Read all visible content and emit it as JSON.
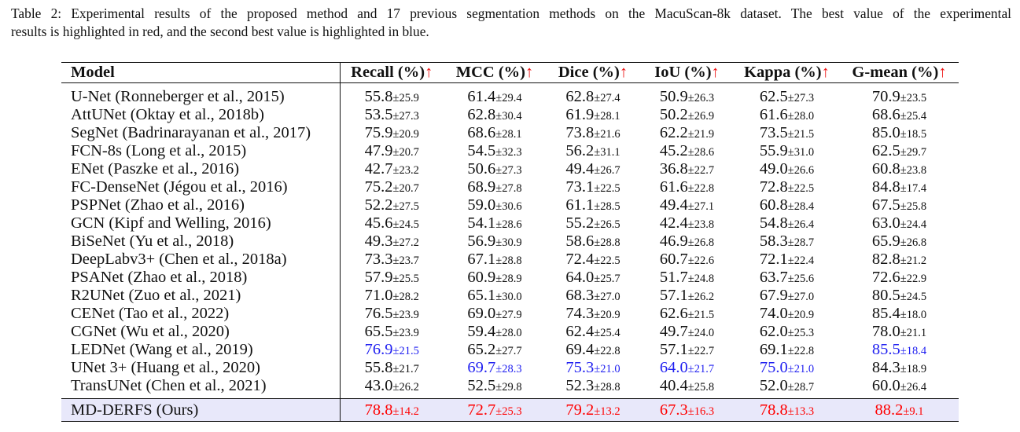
{
  "caption": {
    "line1": "Table 2: Experimental results of the proposed method and 17 previous segmentation methods on the MacuScan-8k dataset.  The best value of the experimental",
    "line2": "results is highlighted in red, and the second best value is highlighted in blue."
  },
  "table": {
    "headers": [
      "Model",
      "Recall (%)",
      "MCC (%)",
      "Dice (%)",
      "IoU (%)",
      "Kappa (%)",
      "G-mean (%)"
    ],
    "arrow": "↑",
    "colors": {
      "best": "#ff0000",
      "second": "#1f1ff0",
      "ours_row_bg": "#e8e8fa"
    },
    "rows": [
      {
        "model": "U-Net (Ronneberger et al., 2015)",
        "cells": [
          {
            "v": "55.8",
            "sd": "±25.9"
          },
          {
            "v": "61.4",
            "sd": "±29.4"
          },
          {
            "v": "62.8",
            "sd": "±27.4"
          },
          {
            "v": "50.9",
            "sd": "±26.3"
          },
          {
            "v": "62.5",
            "sd": "±27.3"
          },
          {
            "v": "70.9",
            "sd": "±23.5"
          }
        ]
      },
      {
        "model": "AttUNet (Oktay et al., 2018b)",
        "cells": [
          {
            "v": "53.5",
            "sd": "±27.3"
          },
          {
            "v": "62.8",
            "sd": "±30.4"
          },
          {
            "v": "61.9",
            "sd": "±28.1"
          },
          {
            "v": "50.2",
            "sd": "±26.9"
          },
          {
            "v": "61.6",
            "sd": "±28.0"
          },
          {
            "v": "68.6",
            "sd": "±25.4"
          }
        ]
      },
      {
        "model": "SegNet (Badrinarayanan et al., 2017)",
        "cells": [
          {
            "v": "75.9",
            "sd": "±20.9"
          },
          {
            "v": "68.6",
            "sd": "±28.1"
          },
          {
            "v": "73.8",
            "sd": "±21.6"
          },
          {
            "v": "62.2",
            "sd": "±21.9"
          },
          {
            "v": "73.5",
            "sd": "±21.5"
          },
          {
            "v": "85.0",
            "sd": "±18.5"
          }
        ]
      },
      {
        "model": "FCN-8s (Long et al., 2015)",
        "cells": [
          {
            "v": "47.9",
            "sd": "±20.7"
          },
          {
            "v": "54.5",
            "sd": "±32.3"
          },
          {
            "v": "56.2",
            "sd": "±31.1"
          },
          {
            "v": "45.2",
            "sd": "±28.6"
          },
          {
            "v": "55.9",
            "sd": "±31.0"
          },
          {
            "v": "62.5",
            "sd": "±29.7"
          }
        ]
      },
      {
        "model": "ENet (Paszke et al., 2016)",
        "cells": [
          {
            "v": "42.7",
            "sd": "±23.2"
          },
          {
            "v": "50.6",
            "sd": "±27.3"
          },
          {
            "v": "49.4",
            "sd": "±26.7"
          },
          {
            "v": "36.8",
            "sd": "±22.7"
          },
          {
            "v": "49.0",
            "sd": "±26.6"
          },
          {
            "v": "60.8",
            "sd": "±23.8"
          }
        ]
      },
      {
        "model": "FC-DenseNet (Jégou et al., 2016)",
        "cells": [
          {
            "v": "75.2",
            "sd": "±20.7"
          },
          {
            "v": "68.9",
            "sd": "±27.8"
          },
          {
            "v": "73.1",
            "sd": "±22.5"
          },
          {
            "v": "61.6",
            "sd": "±22.8"
          },
          {
            "v": "72.8",
            "sd": "±22.5"
          },
          {
            "v": "84.8",
            "sd": "±17.4"
          }
        ]
      },
      {
        "model": "PSPNet (Zhao et al., 2016)",
        "cells": [
          {
            "v": "52.2",
            "sd": "±27.5"
          },
          {
            "v": "59.0",
            "sd": "±30.6"
          },
          {
            "v": "61.1",
            "sd": "±28.5"
          },
          {
            "v": "49.4",
            "sd": "±27.1"
          },
          {
            "v": "60.8",
            "sd": "±28.4"
          },
          {
            "v": "67.5",
            "sd": "±25.8"
          }
        ]
      },
      {
        "model": "GCN (Kipf and Welling, 2016)",
        "cells": [
          {
            "v": "45.6",
            "sd": "±24.5"
          },
          {
            "v": "54.1",
            "sd": "±28.6"
          },
          {
            "v": "55.2",
            "sd": "±26.5"
          },
          {
            "v": "42.4",
            "sd": "±23.8"
          },
          {
            "v": "54.8",
            "sd": "±26.4"
          },
          {
            "v": "63.0",
            "sd": "±24.4"
          }
        ]
      },
      {
        "model": "BiSeNet (Yu et al., 2018)",
        "cells": [
          {
            "v": "49.3",
            "sd": "±27.2"
          },
          {
            "v": "56.9",
            "sd": "±30.9"
          },
          {
            "v": "58.6",
            "sd": "±28.8"
          },
          {
            "v": "46.9",
            "sd": "±26.8"
          },
          {
            "v": "58.3",
            "sd": "±28.7"
          },
          {
            "v": "65.9",
            "sd": "±26.8"
          }
        ]
      },
      {
        "model": "DeepLabv3+ (Chen et al., 2018a)",
        "cells": [
          {
            "v": "73.3",
            "sd": "±23.7"
          },
          {
            "v": "67.1",
            "sd": "±28.8"
          },
          {
            "v": "72.4",
            "sd": "±22.5"
          },
          {
            "v": "60.7",
            "sd": "±22.6"
          },
          {
            "v": "72.1",
            "sd": "±22.4"
          },
          {
            "v": "82.8",
            "sd": "±21.2"
          }
        ]
      },
      {
        "model": "PSANet (Zhao et al., 2018)",
        "cells": [
          {
            "v": "57.9",
            "sd": "±25.5"
          },
          {
            "v": "60.9",
            "sd": "±28.9"
          },
          {
            "v": "64.0",
            "sd": "±25.7"
          },
          {
            "v": "51.7",
            "sd": "±24.8"
          },
          {
            "v": "63.7",
            "sd": "±25.6"
          },
          {
            "v": "72.6",
            "sd": "±22.9"
          }
        ]
      },
      {
        "model": "R2UNet (Zuo et al., 2021)",
        "cells": [
          {
            "v": "71.0",
            "sd": "±28.2"
          },
          {
            "v": "65.1",
            "sd": "±30.0"
          },
          {
            "v": "68.3",
            "sd": "±27.0"
          },
          {
            "v": "57.1",
            "sd": "±26.2"
          },
          {
            "v": "67.9",
            "sd": "±27.0"
          },
          {
            "v": "80.5",
            "sd": "±24.5"
          }
        ]
      },
      {
        "model": "CENet (Tao et al., 2022)",
        "cells": [
          {
            "v": "76.5",
            "sd": "±23.9"
          },
          {
            "v": "69.0",
            "sd": "±27.9"
          },
          {
            "v": "74.3",
            "sd": "±20.9"
          },
          {
            "v": "62.6",
            "sd": "±21.5"
          },
          {
            "v": "74.0",
            "sd": "±20.9"
          },
          {
            "v": "85.4",
            "sd": "±18.0"
          }
        ]
      },
      {
        "model": "CGNet (Wu et al., 2020)",
        "cells": [
          {
            "v": "65.5",
            "sd": "±23.9"
          },
          {
            "v": "59.4",
            "sd": "±28.0"
          },
          {
            "v": "62.4",
            "sd": "±25.4"
          },
          {
            "v": "49.7",
            "sd": "±24.0"
          },
          {
            "v": "62.0",
            "sd": "±25.3"
          },
          {
            "v": "78.0",
            "sd": "±21.1"
          }
        ]
      },
      {
        "model": "LEDNet (Wang et al., 2019)",
        "cells": [
          {
            "v": "76.9",
            "sd": "±21.5",
            "hl": "second"
          },
          {
            "v": "65.2",
            "sd": "±27.7"
          },
          {
            "v": "69.4",
            "sd": "±22.8"
          },
          {
            "v": "57.1",
            "sd": "±22.7"
          },
          {
            "v": "69.1",
            "sd": "±22.8"
          },
          {
            "v": "85.5",
            "sd": "±18.4",
            "hl": "second"
          }
        ]
      },
      {
        "model": "UNet 3+ (Huang et al., 2020)",
        "cells": [
          {
            "v": "55.8",
            "sd": "±21.7"
          },
          {
            "v": "69.7",
            "sd": "±28.3",
            "hl": "second"
          },
          {
            "v": "75.3",
            "sd": "±21.0",
            "hl": "second"
          },
          {
            "v": "64.0",
            "sd": "±21.7",
            "hl": "second"
          },
          {
            "v": "75.0",
            "sd": "±21.0",
            "hl": "second"
          },
          {
            "v": "84.3",
            "sd": "±18.9"
          }
        ]
      },
      {
        "model": "TransUNet (Chen et al., 2021)",
        "cells": [
          {
            "v": "43.0",
            "sd": "±26.2"
          },
          {
            "v": "52.5",
            "sd": "±29.8"
          },
          {
            "v": "52.3",
            "sd": "±28.8"
          },
          {
            "v": "40.4",
            "sd": "±25.8"
          },
          {
            "v": "52.0",
            "sd": "±28.7"
          },
          {
            "v": "60.0",
            "sd": "±26.4"
          }
        ]
      }
    ],
    "ours": {
      "model": "MD-DERFS (Ours)",
      "cells": [
        {
          "v": "78.8",
          "sd": "±14.2",
          "hl": "best"
        },
        {
          "v": "72.7",
          "sd": "±25.3",
          "hl": "best"
        },
        {
          "v": "79.2",
          "sd": "±13.2",
          "hl": "best"
        },
        {
          "v": "67.3",
          "sd": "±16.3",
          "hl": "best"
        },
        {
          "v": "78.8",
          "sd": "±13.3",
          "hl": "best"
        },
        {
          "v": "88.2",
          "sd": "±9.1",
          "hl": "best"
        }
      ]
    }
  }
}
